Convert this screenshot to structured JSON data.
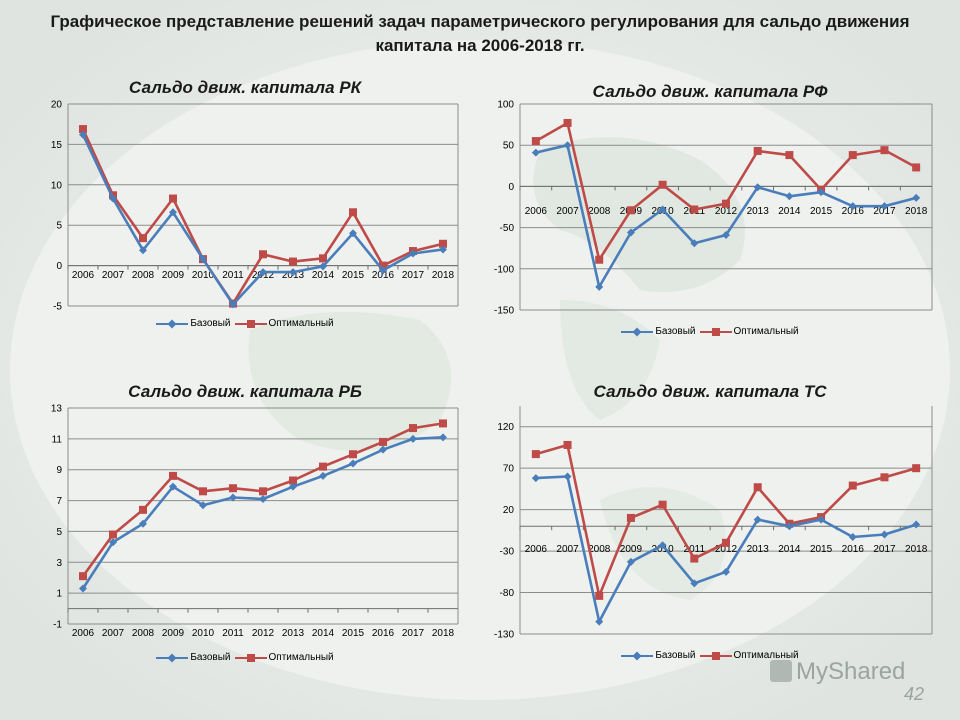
{
  "page": {
    "title": "Графическое представление решений задач параметрического регулирования для сальдо движения капитала на 2006-2018 гг.",
    "page_number": "42",
    "watermark": "MyShared"
  },
  "colors": {
    "base": "#4a7ebb",
    "optimal": "#be4b48",
    "grid": "#8c8c8c"
  },
  "chart_data": [
    {
      "type": "line",
      "title": "Сальдо движ. капитала РК",
      "categories": [
        "2006",
        "2007",
        "2008",
        "2009",
        "2010",
        "2011",
        "2012",
        "2013",
        "2014",
        "2015",
        "2016",
        "2017",
        "2018"
      ],
      "ylim": [
        -5,
        20
      ],
      "yticks": [
        -5,
        0,
        5,
        10,
        15,
        20
      ],
      "legend": "bottom",
      "series": [
        {
          "name": "Базовый",
          "values": [
            16.2,
            8.3,
            1.9,
            6.6,
            0.8,
            -4.8,
            -0.8,
            -0.8,
            -0.1,
            4,
            -0.6,
            1.5,
            2
          ]
        },
        {
          "name": "Оптимальный",
          "values": [
            16.9,
            8.7,
            3.4,
            8.3,
            0.8,
            -4.7,
            1.4,
            0.5,
            0.9,
            6.6,
            0,
            1.8,
            2.7
          ]
        }
      ]
    },
    {
      "type": "line",
      "title": "Сальдо движ. капитала РФ",
      "categories": [
        "2006",
        "2007",
        "2008",
        "2009",
        "2010",
        "2011",
        "2012",
        "2013",
        "2014",
        "2015",
        "2016",
        "2017",
        "2018"
      ],
      "ylim": [
        -150,
        100
      ],
      "yticks": [
        -150,
        -100,
        -50,
        0,
        50,
        100
      ],
      "legend": "bottom",
      "series": [
        {
          "name": "Базовый",
          "values": [
            41,
            50,
            -122,
            -56,
            -28,
            -69,
            -59,
            -1,
            -12,
            -7,
            -24,
            -24,
            -14
          ]
        },
        {
          "name": "Оптимальный",
          "values": [
            55,
            77,
            -89,
            -29,
            2,
            -28,
            -21,
            43,
            38,
            -4,
            38,
            44,
            23
          ]
        }
      ]
    },
    {
      "type": "line",
      "title": "Сальдо движ. капитала РБ",
      "categories": [
        "2006",
        "2007",
        "2008",
        "2009",
        "2010",
        "2011",
        "2012",
        "2013",
        "2014",
        "2015",
        "2016",
        "2017",
        "2018"
      ],
      "ylim": [
        -1,
        13
      ],
      "yticks": [
        -1,
        1,
        3,
        5,
        7,
        9,
        11,
        13
      ],
      "legend": "bottom",
      "series": [
        {
          "name": "Базовый",
          "values": [
            1.3,
            4.3,
            5.5,
            7.9,
            6.7,
            7.2,
            7.1,
            7.9,
            8.6,
            9.4,
            10.3,
            11,
            11.1
          ]
        },
        {
          "name": "Оптимальный",
          "values": [
            2.1,
            4.8,
            6.4,
            8.6,
            7.6,
            7.8,
            7.6,
            8.3,
            9.2,
            10,
            10.8,
            11.7,
            12
          ]
        }
      ]
    },
    {
      "type": "line",
      "title": "Сальдо движ. капитала ТС",
      "categories": [
        "2006",
        "2007",
        "2008",
        "2009",
        "2010",
        "2011",
        "2012",
        "2013",
        "2014",
        "2015",
        "2016",
        "2017",
        "2018"
      ],
      "ylim": [
        -130,
        145
      ],
      "yticks": [
        -130,
        -80,
        -30,
        20,
        70,
        120
      ],
      "legend": "bottom",
      "series": [
        {
          "name": "Базовый",
          "values": [
            58,
            60,
            -115,
            -43,
            -23,
            -69,
            -55,
            8,
            0,
            8,
            -13,
            -10,
            2
          ]
        },
        {
          "name": "Оптимальный",
          "values": [
            87,
            98,
            -84,
            10,
            26,
            -39,
            -20,
            47,
            3,
            11,
            49,
            59,
            70
          ]
        }
      ]
    }
  ]
}
